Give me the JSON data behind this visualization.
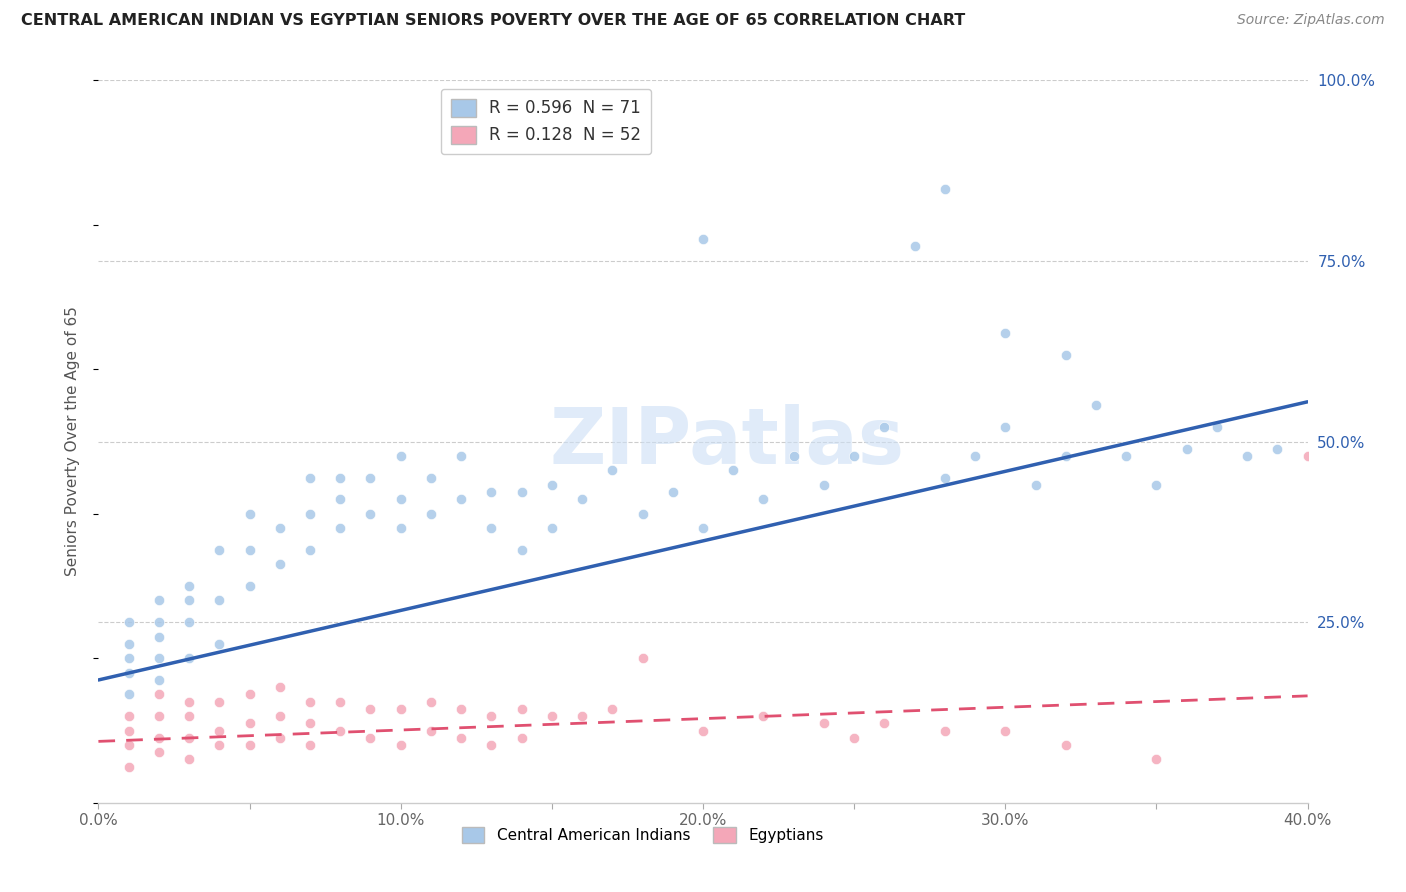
{
  "title": "CENTRAL AMERICAN INDIAN VS EGYPTIAN SENIORS POVERTY OVER THE AGE OF 65 CORRELATION CHART",
  "source": "Source: ZipAtlas.com",
  "ylabel": "Seniors Poverty Over the Age of 65",
  "xlim": [
    0.0,
    0.4
  ],
  "ylim": [
    0.0,
    1.0
  ],
  "xticks": [
    0.0,
    0.05,
    0.1,
    0.15,
    0.2,
    0.25,
    0.3,
    0.35,
    0.4
  ],
  "xticklabels": [
    "0.0%",
    "",
    "10.0%",
    "",
    "20.0%",
    "",
    "30.0%",
    "",
    "40.0%"
  ],
  "yticks_right": [
    0.25,
    0.5,
    0.75,
    1.0
  ],
  "yticklabels_right": [
    "25.0%",
    "50.0%",
    "75.0%",
    "100.0%"
  ],
  "R_blue": 0.596,
  "N_blue": 71,
  "R_pink": 0.128,
  "N_pink": 52,
  "blue_color": "#A8C8E8",
  "pink_color": "#F4A7B8",
  "blue_line_color": "#3060B0",
  "pink_line_color": "#E05070",
  "watermark_text": "ZIPatlas",
  "blue_line_x0": 0.0,
  "blue_line_y0": 0.17,
  "blue_line_x1": 0.4,
  "blue_line_y1": 0.555,
  "pink_line_x0": 0.0,
  "pink_line_y0": 0.085,
  "pink_line_x1": 0.4,
  "pink_line_y1": 0.148,
  "blue_scatter_x": [
    0.01,
    0.01,
    0.01,
    0.01,
    0.01,
    0.02,
    0.02,
    0.02,
    0.02,
    0.02,
    0.03,
    0.03,
    0.03,
    0.03,
    0.04,
    0.04,
    0.04,
    0.05,
    0.05,
    0.05,
    0.06,
    0.06,
    0.07,
    0.07,
    0.07,
    0.08,
    0.08,
    0.08,
    0.09,
    0.09,
    0.1,
    0.1,
    0.1,
    0.11,
    0.11,
    0.12,
    0.12,
    0.13,
    0.13,
    0.14,
    0.14,
    0.15,
    0.15,
    0.16,
    0.17,
    0.18,
    0.19,
    0.2,
    0.21,
    0.22,
    0.23,
    0.24,
    0.25,
    0.26,
    0.28,
    0.29,
    0.3,
    0.31,
    0.32,
    0.33,
    0.34,
    0.35,
    0.36,
    0.37,
    0.38,
    0.39,
    0.27,
    0.28,
    0.3,
    0.32,
    0.2
  ],
  "blue_scatter_y": [
    0.15,
    0.18,
    0.2,
    0.22,
    0.25,
    0.17,
    0.2,
    0.23,
    0.25,
    0.28,
    0.2,
    0.25,
    0.28,
    0.3,
    0.22,
    0.28,
    0.35,
    0.3,
    0.35,
    0.4,
    0.33,
    0.38,
    0.35,
    0.4,
    0.45,
    0.38,
    0.42,
    0.45,
    0.4,
    0.45,
    0.38,
    0.42,
    0.48,
    0.4,
    0.45,
    0.42,
    0.48,
    0.38,
    0.43,
    0.35,
    0.43,
    0.38,
    0.44,
    0.42,
    0.46,
    0.4,
    0.43,
    0.38,
    0.46,
    0.42,
    0.48,
    0.44,
    0.48,
    0.52,
    0.45,
    0.48,
    0.52,
    0.44,
    0.48,
    0.55,
    0.48,
    0.44,
    0.49,
    0.52,
    0.48,
    0.49,
    0.77,
    0.85,
    0.65,
    0.62,
    0.78
  ],
  "pink_scatter_x": [
    0.01,
    0.01,
    0.01,
    0.01,
    0.02,
    0.02,
    0.02,
    0.02,
    0.03,
    0.03,
    0.03,
    0.03,
    0.04,
    0.04,
    0.04,
    0.05,
    0.05,
    0.05,
    0.06,
    0.06,
    0.06,
    0.07,
    0.07,
    0.07,
    0.08,
    0.08,
    0.09,
    0.09,
    0.1,
    0.1,
    0.11,
    0.11,
    0.12,
    0.12,
    0.13,
    0.13,
    0.14,
    0.14,
    0.15,
    0.16,
    0.17,
    0.18,
    0.2,
    0.22,
    0.24,
    0.25,
    0.26,
    0.28,
    0.3,
    0.32,
    0.35,
    0.4
  ],
  "pink_scatter_y": [
    0.05,
    0.08,
    0.1,
    0.12,
    0.07,
    0.09,
    0.12,
    0.15,
    0.06,
    0.09,
    0.12,
    0.14,
    0.08,
    0.1,
    0.14,
    0.08,
    0.11,
    0.15,
    0.09,
    0.12,
    0.16,
    0.08,
    0.11,
    0.14,
    0.1,
    0.14,
    0.09,
    0.13,
    0.08,
    0.13,
    0.1,
    0.14,
    0.09,
    0.13,
    0.08,
    0.12,
    0.09,
    0.13,
    0.12,
    0.12,
    0.13,
    0.2,
    0.1,
    0.12,
    0.11,
    0.09,
    0.11,
    0.1,
    0.1,
    0.08,
    0.06,
    0.48
  ]
}
